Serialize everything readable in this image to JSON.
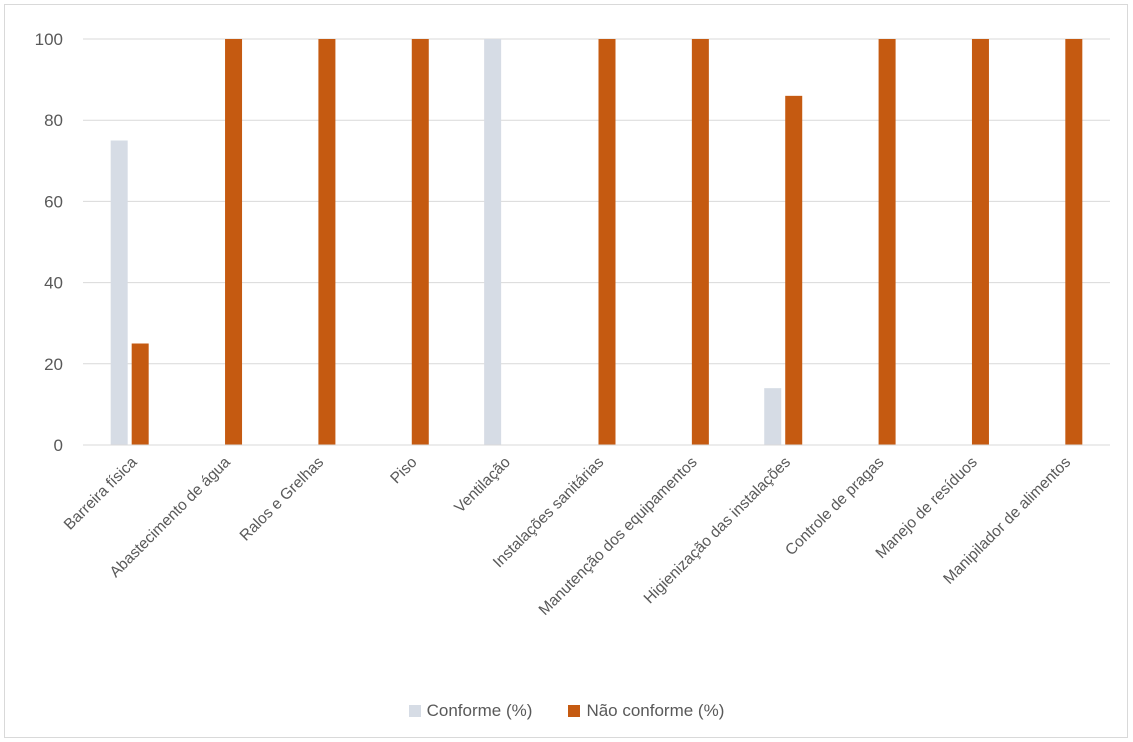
{
  "chart_data": {
    "type": "bar",
    "categories": [
      "Barreira física",
      "Abastecimento de água",
      "Ralos e Grelhas",
      "Piso",
      "Ventilação",
      "Instalações sanitárias",
      "Manutenção dos equipamentos",
      "Higienização das instalações",
      "Controle de pragas",
      "Manejo de resíduos",
      "Manipilador de alimentos"
    ],
    "series": [
      {
        "name": "Conforme (%)",
        "color": "#d6dce5",
        "values": [
          75,
          0,
          0,
          0,
          100,
          0,
          0,
          14,
          0,
          0,
          0
        ]
      },
      {
        "name": "Não conforme (%)",
        "color": "#c55a11",
        "values": [
          25,
          100,
          100,
          100,
          0,
          100,
          100,
          86,
          100,
          100,
          100
        ]
      }
    ],
    "yticks": [
      "0",
      "20",
      "40",
      "60",
      "80",
      "100"
    ],
    "ylim": [
      0,
      100
    ],
    "grid": true,
    "legend_position": "bottom"
  }
}
